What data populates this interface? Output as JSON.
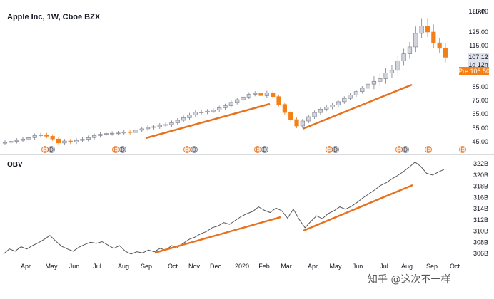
{
  "chart_data": [
    {
      "type": "candlestick",
      "title": "Apple Inc, 1W, Cboe BZX",
      "ylabel": "USD",
      "ylim": [
        40,
        140
      ],
      "y_ticks": [
        "135.00",
        "125.00",
        "115.00",
        "85.00",
        "75.00",
        "65.00",
        "55.00",
        "45.00"
      ],
      "y_tick_values": [
        135,
        125,
        115,
        85,
        75,
        65,
        55,
        45
      ],
      "x_ticks": [
        "Apr",
        "May",
        "Jun",
        "Jul",
        "Aug",
        "Sep",
        "Oct",
        "Nov",
        "Dec",
        "2020",
        "Feb",
        "Mar",
        "Apr",
        "May",
        "Jun",
        "Jul",
        "Aug",
        "Sep",
        "Oct"
      ],
      "price_labels": [
        {
          "text": "107.12",
          "style": "gray"
        },
        {
          "text": "1d 12h",
          "style": "gray"
        },
        {
          "text": "Pre 106.50",
          "style": "orange"
        }
      ],
      "up_color": "#d1d4dc",
      "down_color": "#f57f17",
      "close_approx": [
        44.5,
        45.2,
        46,
        47,
        48,
        49.5,
        50,
        49,
        47,
        44,
        45.5,
        44.8,
        46,
        46.8,
        48,
        49.5,
        50.5,
        51,
        51.2,
        51.4,
        52.2,
        51.8,
        53.5,
        54.5,
        55.5,
        56,
        57,
        57.5,
        58.8,
        60.5,
        62.3,
        64.2,
        66.2,
        66.3,
        67,
        68,
        69.5,
        71,
        73.5,
        75.5,
        77.5,
        79.5,
        80.2,
        78.5,
        80.5,
        77.8,
        72,
        66,
        61,
        56.5,
        60,
        63,
        66,
        68.5,
        70,
        71.5,
        74,
        76.5,
        79,
        81.5,
        84,
        87,
        89,
        91,
        95,
        97,
        104,
        109,
        114,
        124,
        128,
        125,
        117,
        113,
        106.5
      ],
      "events": [
        "E",
        "D",
        "E",
        "D",
        "E",
        "D",
        "E",
        "D",
        "E",
        "D",
        "E",
        "D",
        "E",
        "E"
      ]
    },
    {
      "type": "line",
      "title": "OBV",
      "y_ticks": [
        "322B",
        "320B",
        "318B",
        "316B",
        "314B",
        "312B",
        "310B",
        "308B",
        "306B"
      ],
      "y_tick_values": [
        322,
        320,
        318,
        316,
        314,
        312,
        310,
        308,
        306
      ],
      "ylim": [
        305,
        323
      ],
      "obv_approx": [
        305.9,
        306.8,
        306.4,
        307.2,
        306.8,
        307.4,
        307.9,
        308.5,
        309.2,
        308.2,
        307.3,
        306.8,
        306.4,
        307.1,
        307.6,
        308.0,
        307.8,
        308.1,
        307.5,
        306.9,
        307.4,
        306.4,
        305.9,
        306.3,
        306.1,
        306.6,
        306.3,
        306.9,
        306.6,
        307.4,
        307.1,
        307.8,
        308.5,
        308.9,
        309.5,
        309.9,
        310.6,
        310.9,
        311.5,
        311.2,
        311.9,
        312.6,
        313.1,
        313.5,
        314.3,
        313.7,
        313.3,
        314.1,
        313.6,
        312.3,
        313.9,
        312.1,
        310.6,
        311.7,
        312.7,
        312.2,
        313.1,
        313.6,
        314.3,
        313.9,
        314.4,
        315.1,
        315.9,
        316.6,
        317.3,
        318.1,
        318.6,
        319.3,
        319.9,
        320.6,
        321.4,
        322.3,
        321.5,
        320.3,
        320.0,
        320.5,
        321.0
      ],
      "line_color": "#555555"
    }
  ],
  "trendlines_color": "#e8711d",
  "watermark": "知乎 @这次不一样"
}
